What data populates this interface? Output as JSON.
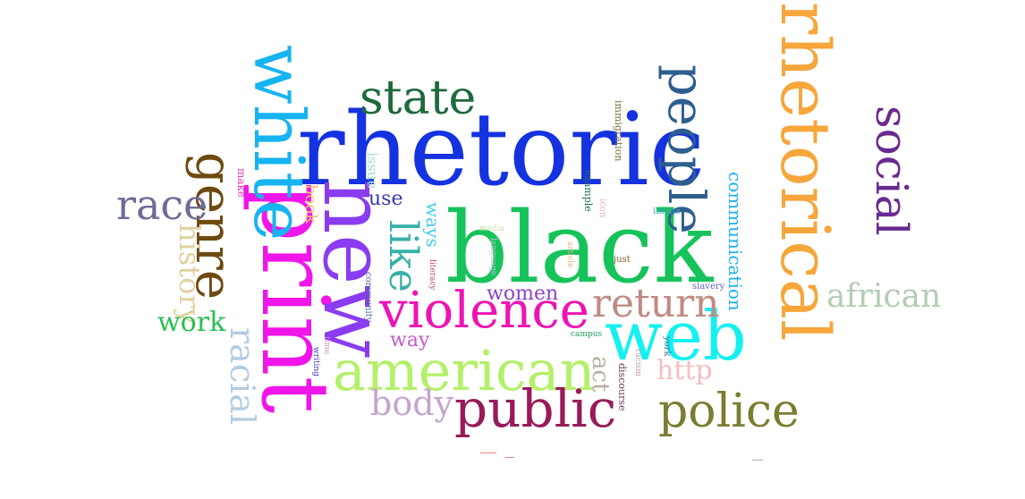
{
  "words": [
    {
      "text": "rhetoric",
      "color": "#1432e0"
    },
    {
      "text": "black",
      "color": "#16c35a"
    },
    {
      "text": "web",
      "color": "#14f0f0"
    },
    {
      "text": "rhetorical",
      "color": "#f6a63a"
    },
    {
      "text": "print",
      "color": "#f015e8"
    },
    {
      "text": "white",
      "color": "#16b4f0"
    },
    {
      "text": "new",
      "color": "#8a3cf0"
    },
    {
      "text": "american",
      "color": "#b4f06a"
    },
    {
      "text": "violence",
      "color": "#ee14b4"
    },
    {
      "text": "people",
      "color": "#2e5e8e"
    },
    {
      "text": "public",
      "color": "#981a5a"
    },
    {
      "text": "police",
      "color": "#7c7c32"
    },
    {
      "text": "state",
      "color": "#1e6a3c"
    },
    {
      "text": "social",
      "color": "#6a2a90"
    },
    {
      "text": "genre",
      "color": "#6e4a10"
    },
    {
      "text": "race",
      "color": "#6c6c96"
    },
    {
      "text": "return",
      "color": "#c08a82"
    },
    {
      "text": "african",
      "color": "#b4ccb4"
    },
    {
      "text": "like",
      "color": "#38b0a8"
    },
    {
      "text": "body",
      "color": "#c4a4cc"
    },
    {
      "text": "racial",
      "color": "#b4cce0"
    },
    {
      "text": "history",
      "color": "#e0d0a0"
    },
    {
      "text": "work",
      "color": "#28c050"
    },
    {
      "text": "women",
      "color": "#8a42c8"
    },
    {
      "text": "way",
      "color": "#c45acc"
    },
    {
      "text": "use",
      "color": "#3a3ab0"
    },
    {
      "text": "http",
      "color": "#f4c0c0"
    },
    {
      "text": "act",
      "color": "#b8aca0"
    },
    {
      "text": "communication",
      "color": "#1cb0f0"
    },
    {
      "text": "ways",
      "color": "#40d0f0"
    },
    {
      "text": "book",
      "color": "#f0c070"
    },
    {
      "text": "issue",
      "color": "#a0e0d0"
    },
    {
      "text": "make",
      "color": "#ee3ab4"
    },
    {
      "text": "immigration",
      "color": "#807040"
    },
    {
      "text": "example",
      "color": "#207060"
    },
    {
      "text": "icon",
      "color": "#f4b0b0"
    },
    {
      "text": "image",
      "color": "#40a0c0"
    },
    {
      "text": "media",
      "color": "#d0e0b0"
    },
    {
      "text": "language",
      "color": "#c0c0e0"
    },
    {
      "text": "article",
      "color": "#f0b080"
    },
    {
      "text": "just",
      "color": "#806020"
    },
    {
      "text": "literacy",
      "color": "#c04080"
    },
    {
      "text": "community",
      "color": "#5060a0"
    },
    {
      "text": "time",
      "color": "#d090c0"
    },
    {
      "text": "writing",
      "color": "#4040c0"
    },
    {
      "text": "campus",
      "color": "#20a060"
    },
    {
      "text": "slavery",
      "color": "#6060c0"
    },
    {
      "text": "york",
      "color": "#4070a0"
    },
    {
      "text": "racism",
      "color": "#c0a0a0"
    },
    {
      "text": "discourse",
      "color": "#704060"
    }
  ]
}
